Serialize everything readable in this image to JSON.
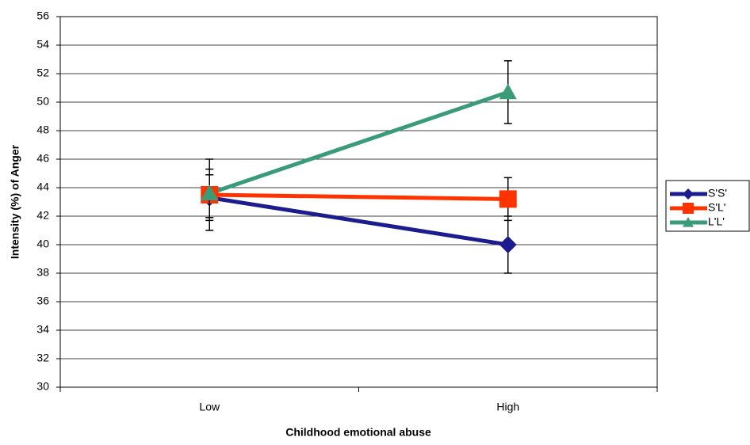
{
  "chart_data": {
    "type": "line",
    "xlabel": "Childhood emotional abuse",
    "ylabel": "Intensity (%) of Anger",
    "categories": [
      "Low",
      "High"
    ],
    "series": [
      {
        "name": "S'S'",
        "color": "#1c1c8e",
        "marker": "diamond",
        "values": [
          43.3,
          40.0
        ],
        "errors": [
          1.6,
          2.0
        ]
      },
      {
        "name": "S'L'",
        "color": "#ff3300",
        "marker": "square",
        "values": [
          43.5,
          43.2
        ],
        "errors": [
          2.5,
          1.5
        ]
      },
      {
        "name": "L'L'",
        "color": "#3a9b78",
        "marker": "triangle",
        "values": [
          43.6,
          50.7
        ],
        "errors": [
          1.7,
          2.2
        ]
      }
    ],
    "ylim": [
      30,
      56
    ],
    "yticks": [
      30,
      32,
      34,
      36,
      38,
      40,
      42,
      44,
      46,
      48,
      50,
      52,
      54,
      56
    ],
    "grid": true,
    "legend": "right"
  }
}
